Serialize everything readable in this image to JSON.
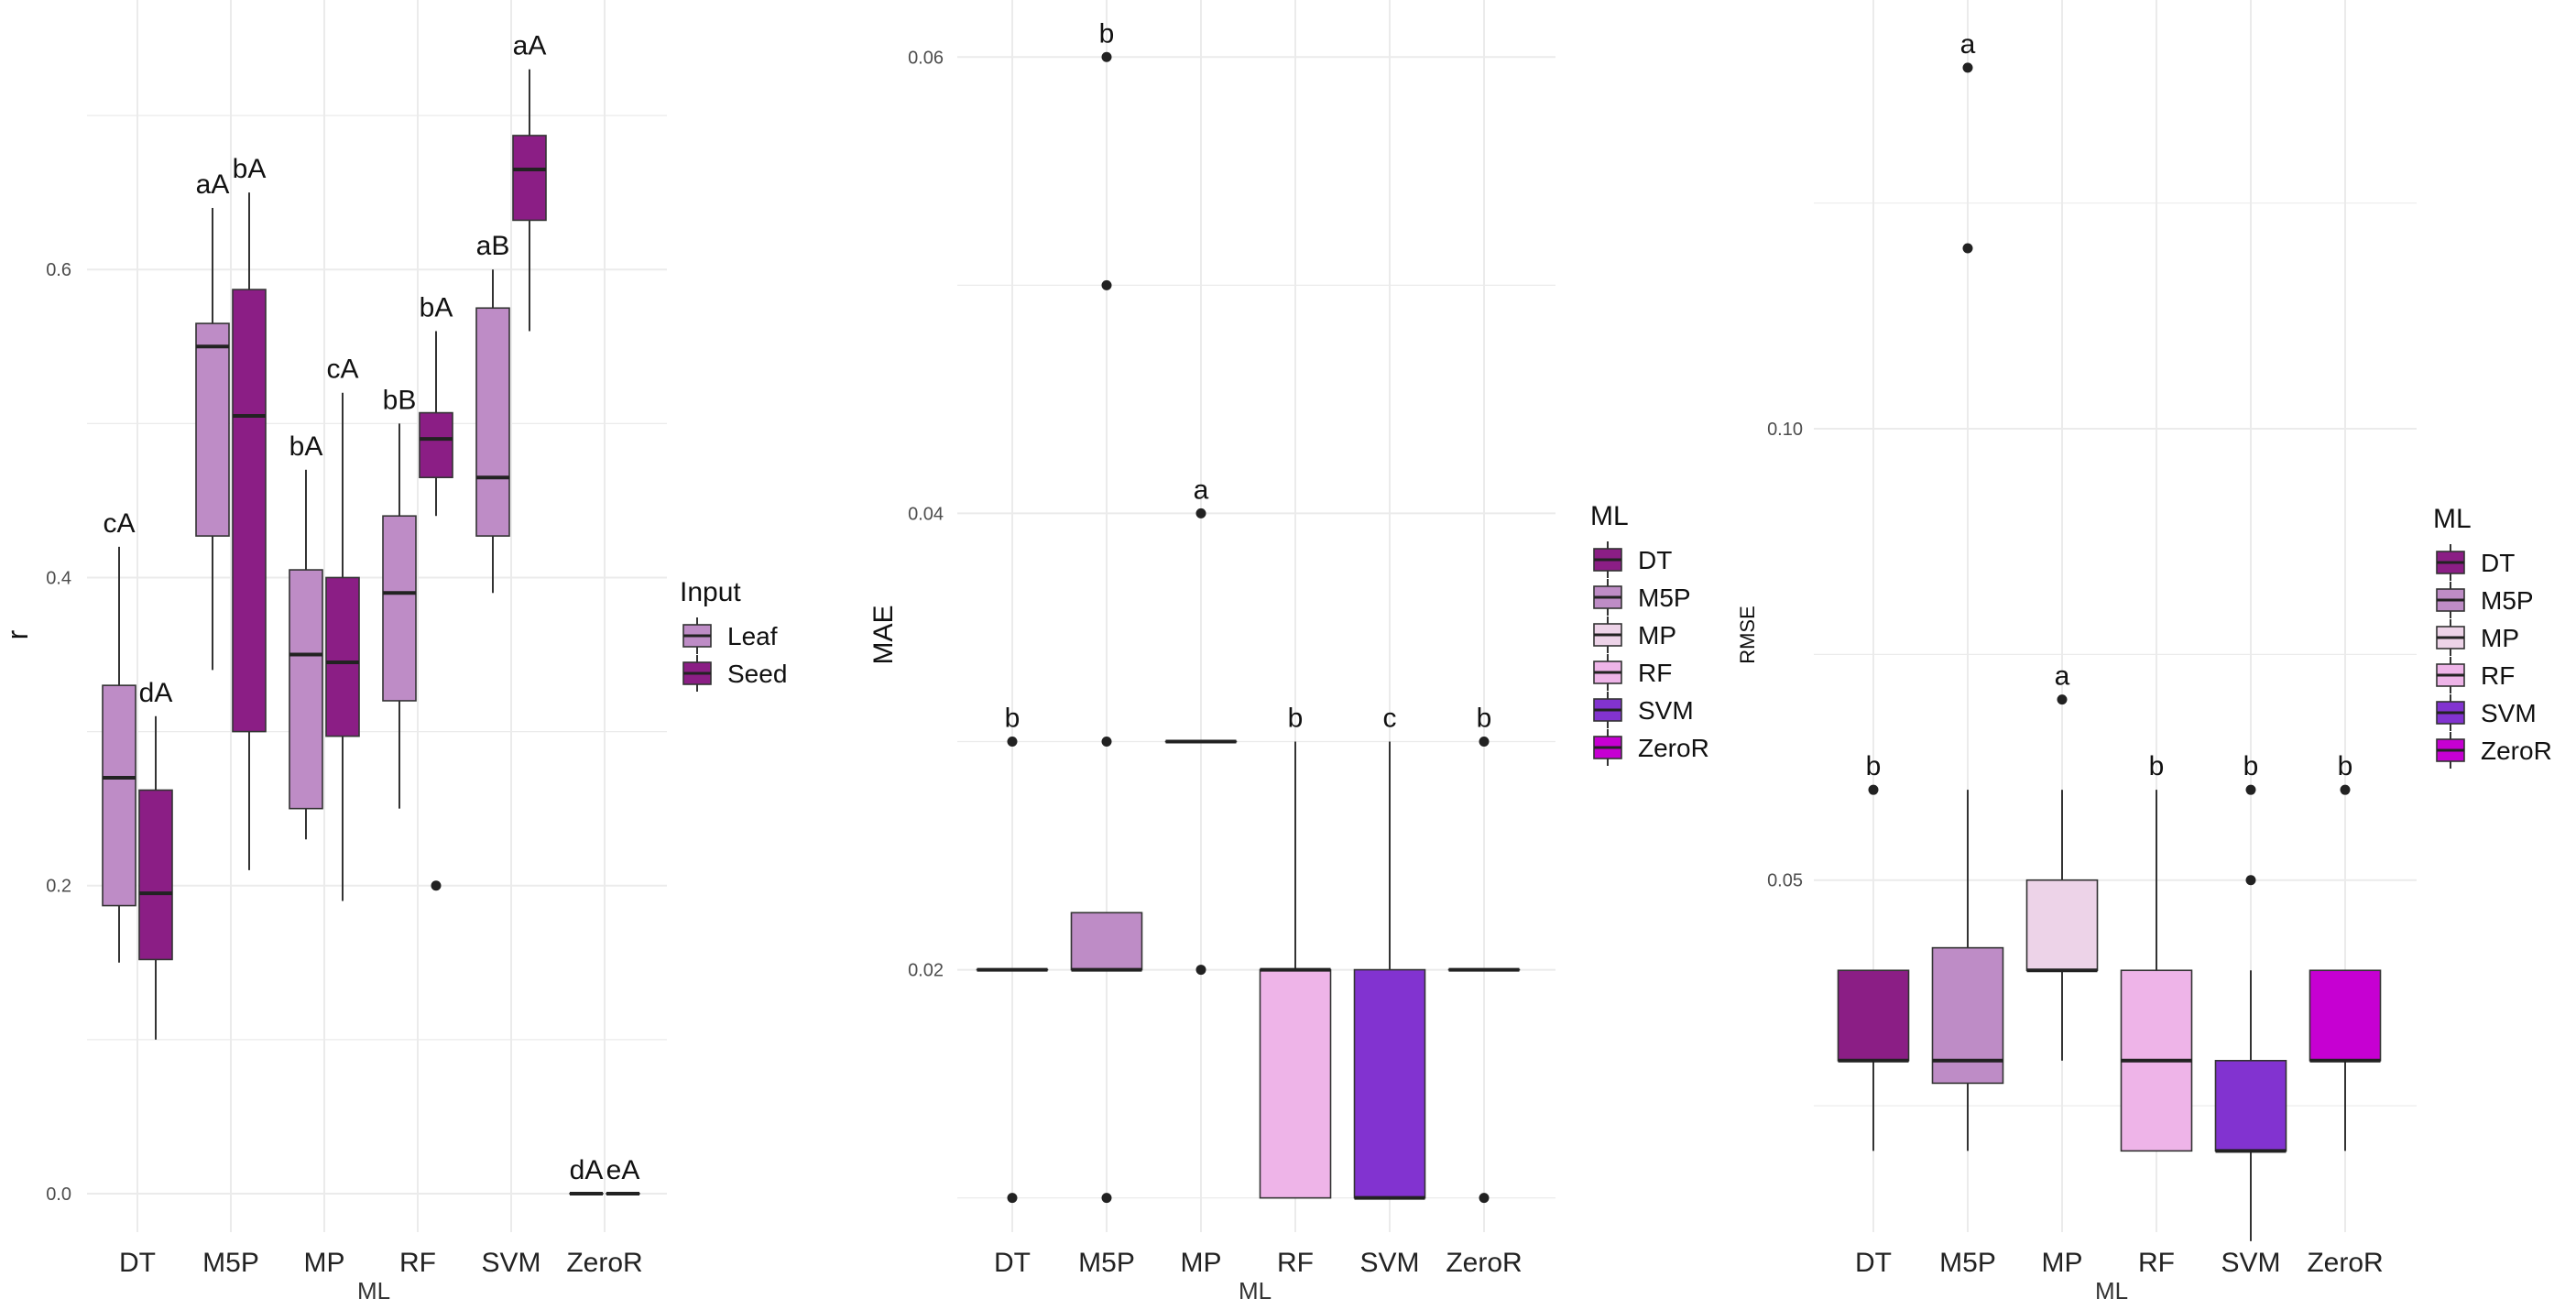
{
  "chart_data": [
    {
      "type": "boxplot",
      "xlabel": "ML",
      "ylabel": "r",
      "ylim": [
        -0.025,
        0.775
      ],
      "yticks": [
        0.0,
        0.2,
        0.4,
        0.6
      ],
      "ytick_labels": [
        "0.0",
        "0.2",
        "0.4",
        "0.6"
      ],
      "grid": true,
      "categories": [
        "DT",
        "M5P",
        "MP",
        "RF",
        "SVM",
        "ZeroR"
      ],
      "legend": {
        "title": "Input",
        "placement": "right",
        "entries": [
          {
            "label": "Leaf",
            "color": "#BE8CC6"
          },
          {
            "label": "Seed",
            "color": "#8B1E85"
          }
        ]
      },
      "boxes": [
        {
          "category": "DT",
          "group": "Leaf",
          "color": "#BE8CC6",
          "whisker_low": 0.15,
          "q1": 0.187,
          "median": 0.27,
          "q3": 0.33,
          "whisker_high": 0.42,
          "outliers": [],
          "label": "cA"
        },
        {
          "category": "DT",
          "group": "Seed",
          "color": "#8B1E85",
          "whisker_low": 0.1,
          "q1": 0.152,
          "median": 0.195,
          "q3": 0.262,
          "whisker_high": 0.31,
          "outliers": [],
          "label": "dA"
        },
        {
          "category": "M5P",
          "group": "Leaf",
          "color": "#BE8CC6",
          "whisker_low": 0.34,
          "q1": 0.427,
          "median": 0.55,
          "q3": 0.565,
          "whisker_high": 0.64,
          "outliers": [],
          "label": "aA"
        },
        {
          "category": "M5P",
          "group": "Seed",
          "color": "#8B1E85",
          "whisker_low": 0.21,
          "q1": 0.3,
          "median": 0.505,
          "q3": 0.587,
          "whisker_high": 0.65,
          "outliers": [],
          "label": "bA"
        },
        {
          "category": "MP",
          "group": "Leaf",
          "color": "#BE8CC6",
          "whisker_low": 0.23,
          "q1": 0.25,
          "median": 0.35,
          "q3": 0.405,
          "whisker_high": 0.47,
          "outliers": [],
          "label": "bA"
        },
        {
          "category": "MP",
          "group": "Seed",
          "color": "#8B1E85",
          "whisker_low": 0.19,
          "q1": 0.297,
          "median": 0.345,
          "q3": 0.4,
          "whisker_high": 0.52,
          "outliers": [],
          "label": "cA"
        },
        {
          "category": "RF",
          "group": "Leaf",
          "color": "#BE8CC6",
          "whisker_low": 0.25,
          "q1": 0.32,
          "median": 0.39,
          "q3": 0.44,
          "whisker_high": 0.5,
          "outliers": [],
          "label": "bB"
        },
        {
          "category": "RF",
          "group": "Seed",
          "color": "#8B1E85",
          "whisker_low": 0.44,
          "q1": 0.465,
          "median": 0.49,
          "q3": 0.507,
          "whisker_high": 0.56,
          "outliers": [
            0.2
          ],
          "label": "bA"
        },
        {
          "category": "SVM",
          "group": "Leaf",
          "color": "#BE8CC6",
          "whisker_low": 0.39,
          "q1": 0.427,
          "median": 0.465,
          "q3": 0.575,
          "whisker_high": 0.6,
          "outliers": [],
          "label": "aB"
        },
        {
          "category": "SVM",
          "group": "Seed",
          "color": "#8B1E85",
          "whisker_low": 0.56,
          "q1": 0.632,
          "median": 0.665,
          "q3": 0.687,
          "whisker_high": 0.73,
          "outliers": [],
          "label": "aA"
        },
        {
          "category": "ZeroR",
          "group": "Leaf",
          "color": "#BE8CC6",
          "whisker_low": 0.0,
          "q1": 0.0,
          "median": 0.0,
          "q3": 0.0,
          "whisker_high": 0.0,
          "outliers": [],
          "label": "dA"
        },
        {
          "category": "ZeroR",
          "group": "Seed",
          "color": "#8B1E85",
          "whisker_low": 0.0,
          "q1": 0.0,
          "median": 0.0,
          "q3": 0.0,
          "whisker_high": 0.0,
          "outliers": [],
          "label": "eA"
        }
      ]
    },
    {
      "type": "boxplot",
      "xlabel": "ML",
      "ylabel": "MAE",
      "ylim": [
        0.0085,
        0.0625
      ],
      "yticks": [
        0.02,
        0.04,
        0.06
      ],
      "ytick_labels": [
        "0.02",
        "0.04",
        "0.06"
      ],
      "grid": true,
      "categories": [
        "DT",
        "M5P",
        "MP",
        "RF",
        "SVM",
        "ZeroR"
      ],
      "legend": {
        "title": "ML",
        "placement": "right",
        "entries": [
          {
            "label": "DT",
            "color": "#8B1E85"
          },
          {
            "label": "M5P",
            "color": "#BE8CC6"
          },
          {
            "label": "MP",
            "color": "#EDD3E8"
          },
          {
            "label": "RF",
            "color": "#EEB4E8"
          },
          {
            "label": "SVM",
            "color": "#8233D0"
          },
          {
            "label": "ZeroR",
            "color": "#C600D2"
          }
        ]
      },
      "boxes": [
        {
          "category": "DT",
          "color": "#8B1E85",
          "whisker_low": 0.02,
          "q1": 0.02,
          "median": 0.02,
          "q3": 0.02,
          "whisker_high": 0.02,
          "outliers": [
            0.01,
            0.03
          ],
          "label": "b"
        },
        {
          "category": "M5P",
          "color": "#BE8CC6",
          "whisker_low": 0.02,
          "q1": 0.02,
          "median": 0.02,
          "q3": 0.0225,
          "whisker_high": 0.0225,
          "outliers": [
            0.01,
            0.03,
            0.05,
            0.06
          ],
          "label": "b"
        },
        {
          "category": "MP",
          "color": "#EDD3E8",
          "whisker_low": 0.03,
          "q1": 0.03,
          "median": 0.03,
          "q3": 0.03,
          "whisker_high": 0.03,
          "outliers": [
            0.02,
            0.04
          ],
          "label": "a"
        },
        {
          "category": "RF",
          "color": "#EEB4E8",
          "whisker_low": 0.01,
          "q1": 0.01,
          "median": 0.02,
          "q3": 0.02,
          "whisker_high": 0.03,
          "outliers": [],
          "label": "b"
        },
        {
          "category": "SVM",
          "color": "#8233D0",
          "whisker_low": 0.01,
          "q1": 0.01,
          "median": 0.01,
          "q3": 0.02,
          "whisker_high": 0.03,
          "outliers": [],
          "label": "c"
        },
        {
          "category": "ZeroR",
          "color": "#C600D2",
          "whisker_low": 0.02,
          "q1": 0.02,
          "median": 0.02,
          "q3": 0.02,
          "whisker_high": 0.02,
          "outliers": [
            0.01,
            0.03
          ],
          "label": "b"
        }
      ]
    },
    {
      "type": "boxplot",
      "xlabel": "ML",
      "ylabel": "RMSE",
      "ylim": [
        0.011,
        0.1475
      ],
      "yticks": [
        0.05,
        0.1
      ],
      "ytick_labels": [
        "0.05",
        "0.10"
      ],
      "grid": true,
      "categories": [
        "DT",
        "M5P",
        "MP",
        "RF",
        "SVM",
        "ZeroR"
      ],
      "legend": {
        "title": "ML",
        "placement": "right",
        "entries": [
          {
            "label": "DT",
            "color": "#8B1E85"
          },
          {
            "label": "M5P",
            "color": "#BE8CC6"
          },
          {
            "label": "MP",
            "color": "#EDD3E8"
          },
          {
            "label": "RF",
            "color": "#EEB4E8"
          },
          {
            "label": "SVM",
            "color": "#8233D0"
          },
          {
            "label": "ZeroR",
            "color": "#C600D2"
          }
        ]
      },
      "boxes": [
        {
          "category": "DT",
          "color": "#8B1E85",
          "whisker_low": 0.02,
          "q1": 0.03,
          "median": 0.03,
          "q3": 0.04,
          "whisker_high": 0.04,
          "outliers": [
            0.06
          ],
          "label": "b"
        },
        {
          "category": "M5P",
          "color": "#BE8CC6",
          "whisker_low": 0.02,
          "q1": 0.0275,
          "median": 0.03,
          "q3": 0.0425,
          "whisker_high": 0.06,
          "outliers": [
            0.12,
            0.14
          ],
          "label": "a"
        },
        {
          "category": "MP",
          "color": "#EDD3E8",
          "whisker_low": 0.03,
          "q1": 0.04,
          "median": 0.04,
          "q3": 0.05,
          "whisker_high": 0.06,
          "outliers": [
            0.07
          ],
          "label": "a"
        },
        {
          "category": "RF",
          "color": "#EEB4E8",
          "whisker_low": 0.02,
          "q1": 0.02,
          "median": 0.03,
          "q3": 0.04,
          "whisker_high": 0.06,
          "outliers": [],
          "label": "b"
        },
        {
          "category": "SVM",
          "color": "#8233D0",
          "whisker_low": 0.01,
          "q1": 0.02,
          "median": 0.02,
          "q3": 0.03,
          "whisker_high": 0.04,
          "outliers": [
            0.05,
            0.06
          ],
          "label": "b"
        },
        {
          "category": "ZeroR",
          "color": "#C600D2",
          "whisker_low": 0.02,
          "q1": 0.03,
          "median": 0.03,
          "q3": 0.04,
          "whisker_high": 0.04,
          "outliers": [
            0.06
          ],
          "label": "b"
        }
      ]
    }
  ]
}
